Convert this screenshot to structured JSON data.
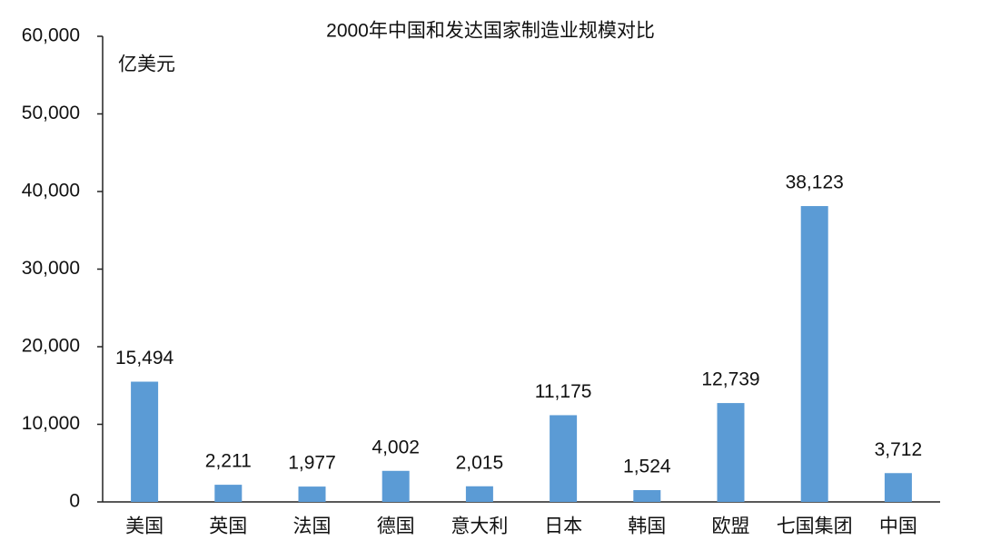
{
  "chart_data": {
    "type": "bar",
    "title": "2000年中国和发达国家制造业规模对比",
    "y_label": "亿美元",
    "categories": [
      "美国",
      "英国",
      "法国",
      "德国",
      "意大利",
      "日本",
      "韩国",
      "欧盟",
      "七国集团",
      "中国"
    ],
    "values": [
      15494,
      2211,
      1977,
      4002,
      2015,
      11175,
      1524,
      12739,
      38123,
      3712
    ],
    "value_labels": [
      "15,494",
      "2,211",
      "1,977",
      "4,002",
      "2,015",
      "11,175",
      "1,524",
      "12,739",
      "38,123",
      "3,712"
    ],
    "color": "#5b9bd5",
    "ylim": [
      0,
      60000
    ],
    "yticks": [
      0,
      {
        "value": 10000,
        "label": "10,000"
      },
      {
        "value": 20000,
        "label": "20,000"
      },
      {
        "value": 30000,
        "label": "30,000"
      },
      {
        "value": 40000,
        "label": "40,000"
      },
      {
        "value": 50000,
        "label": "50,000"
      },
      {
        "value": 60000,
        "label": "60,000"
      }
    ],
    "grid": false
  }
}
